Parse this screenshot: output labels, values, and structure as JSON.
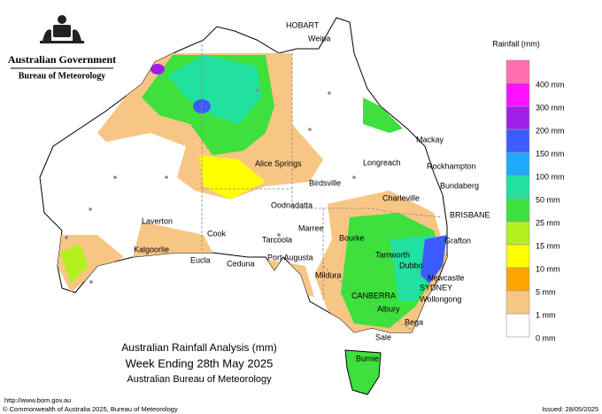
{
  "header": {
    "government": "Australian Government",
    "agency": "Bureau of Meteorology"
  },
  "legend": {
    "title": "Rainfall (mm)",
    "items": [
      {
        "label": "400 mm",
        "color": "#ff6eb0"
      },
      {
        "label": "300 mm",
        "color": "#ff10ff"
      },
      {
        "label": "200 mm",
        "color": "#a020e8"
      },
      {
        "label": "150 mm",
        "color": "#3c5cff"
      },
      {
        "label": "100 mm",
        "color": "#20a8ff"
      },
      {
        "label": "50 mm",
        "color": "#22e0a0"
      },
      {
        "label": "25 mm",
        "color": "#3ee03e"
      },
      {
        "label": "15 mm",
        "color": "#b4f020"
      },
      {
        "label": "10 mm",
        "color": "#ffff00"
      },
      {
        "label": "5 mm",
        "color": "#ffa500"
      },
      {
        "label": "1 mm",
        "color": "#f8c684"
      },
      {
        "label": "0 mm",
        "color": "#ffffff"
      }
    ]
  },
  "places": [
    "HOBART",
    "Weipa",
    "Mackay",
    "Longreach",
    "Rockhampton",
    "Alice Springs",
    "Bundaberg",
    "Birdsville",
    "Charleville",
    "Oodnadatta",
    "BRISBANE",
    "Laverton",
    "Marree",
    "Cook",
    "Tarcoola",
    "Bourke",
    "Grafton",
    "Kalgoorlie",
    "Port Augusta",
    "Tamworth",
    "Eucla",
    "Ceduna",
    "Dubbo",
    "Mildura",
    "Newcastle",
    "SYDNEY",
    "CANBERRA",
    "Wollongong",
    "Albury",
    "Bega",
    "Sale",
    "Burnie"
  ],
  "titles": [
    "Australian Rainfall Analysis (mm)",
    "Week Ending 28th May 2025",
    "Australian Bureau of Meteorology"
  ],
  "footer": {
    "url": "http://www.bom.gov.au",
    "copyright": "© Commonwealth of Australia 2025, Bureau of Meteorology",
    "issued": "Issued: 28/05/2025"
  }
}
